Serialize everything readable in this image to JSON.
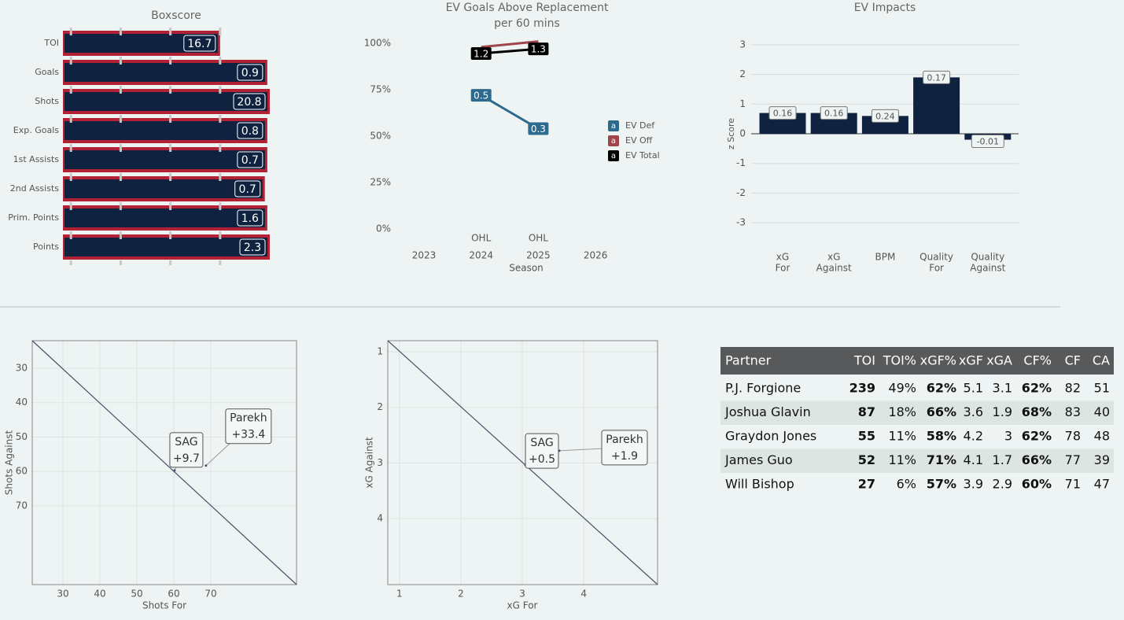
{
  "chart_data": [
    {
      "type": "bar",
      "orientation": "horizontal",
      "title": "Boxscore",
      "categories": [
        "TOI",
        "Goals",
        "Shots",
        "Exp. Goals",
        "1st Assists",
        "2nd Assists",
        "Prim. Points",
        "Points"
      ],
      "values": [
        16.7,
        0.9,
        20.8,
        0.8,
        0.7,
        0.7,
        1.6,
        2.3
      ],
      "percentiles": [
        80,
        99,
        100,
        99,
        99,
        98,
        99,
        100
      ],
      "xlim": [
        0,
        100
      ],
      "xticks": [
        20,
        40,
        60,
        80
      ],
      "color": "#0f2340",
      "outline_color": "#b22234"
    },
    {
      "type": "line",
      "title": "EV Goals Above Replacement",
      "subtitle": "per 60 mins",
      "categories": [
        2023,
        2024,
        2025,
        2026
      ],
      "leagues": [
        null,
        "OHL",
        "OHL",
        null
      ],
      "xlabel": "Season",
      "ylim": [
        0,
        100
      ],
      "yticks": [
        {
          "value": 0,
          "label": "0%"
        },
        {
          "value": 25,
          "label": "25%"
        },
        {
          "value": 50,
          "label": "50%"
        },
        {
          "value": 75,
          "label": "75%"
        },
        {
          "value": 100,
          "label": "100%"
        }
      ],
      "series": [
        {
          "name": "EV Def",
          "color": "#2e6a8e",
          "values": [
            null,
            72,
            54,
            null
          ],
          "gar": [
            null,
            0.5,
            0.3,
            null
          ]
        },
        {
          "name": "EV Off",
          "color": "#a0464b",
          "values": [
            null,
            98,
            101,
            null
          ]
        },
        {
          "name": "EV Total",
          "color": "#000000",
          "values": [
            null,
            94.5,
            97,
            null
          ],
          "gar": [
            null,
            1.2,
            1.3,
            null
          ]
        }
      ],
      "legend_marker": "a"
    },
    {
      "type": "bar",
      "title": "EV Impacts",
      "ylabel": "z Score",
      "categories": [
        [
          "xG",
          "For"
        ],
        [
          "xG",
          "Against"
        ],
        [
          "BPM"
        ],
        [
          "Quality",
          "For"
        ],
        [
          "Quality",
          "Against"
        ]
      ],
      "values": [
        0.7,
        0.7,
        0.6,
        1.9,
        -0.2
      ],
      "raw": [
        0.16,
        0.16,
        0.24,
        0.17,
        -0.01
      ],
      "ylim": [
        -3.5,
        3.5
      ],
      "yticks": [
        -3,
        -2,
        -1,
        0,
        1,
        2,
        3
      ],
      "color": "#0f2340",
      "grid": true
    },
    {
      "type": "scatter",
      "xlabel": "Shots For",
      "ylabel": "Shots Against",
      "xlim": [
        21.7,
        93.2
      ],
      "ylim": [
        22,
        92.9
      ],
      "y_inverted": true,
      "xticks": [
        30,
        40,
        50,
        60,
        70
      ],
      "yticks": [
        30,
        40,
        50,
        60,
        70
      ],
      "points": [
        {
          "name": "SAG",
          "label": "+9.7",
          "x": 60.2,
          "y": 59.7
        },
        {
          "name": "Parekh",
          "label": "+33.4",
          "x": 68.7,
          "y": 58.3
        }
      ]
    },
    {
      "type": "scatter",
      "xlabel": "xG For",
      "ylabel": "xG Against",
      "xlim": [
        0.81,
        5.2
      ],
      "ylim": [
        0.8,
        5.19
      ],
      "y_inverted": true,
      "xticks": [
        1,
        2,
        3,
        4
      ],
      "yticks": [
        1,
        2,
        3,
        4
      ],
      "points": [
        {
          "name": "SAG",
          "label": "+0.5",
          "x": 3.05,
          "y": 3.04
        },
        {
          "name": "Parekh",
          "label": "+1.9",
          "x": 3.6,
          "y": 2.78
        }
      ]
    }
  ],
  "table": {
    "header": [
      "Partner",
      "TOI",
      "TOI%",
      "xGF%",
      "xGF",
      "xGA",
      "CF%",
      "CF",
      "CA"
    ],
    "rows": [
      [
        "P.J. Forgione",
        "239",
        "49%",
        "62%",
        "5.1",
        "3.1",
        "62%",
        "82",
        "51"
      ],
      [
        "Joshua Glavin",
        "87",
        "18%",
        "66%",
        "3.6",
        "1.9",
        "68%",
        "83",
        "40"
      ],
      [
        "Graydon Jones",
        "55",
        "11%",
        "58%",
        "4.2",
        "3",
        "62%",
        "78",
        "48"
      ],
      [
        "James Guo",
        "52",
        "11%",
        "71%",
        "4.1",
        "1.7",
        "66%",
        "77",
        "39"
      ],
      [
        "Will Bishop",
        "27",
        "6%",
        "57%",
        "3.9",
        "2.9",
        "60%",
        "71",
        "47"
      ]
    ]
  }
}
